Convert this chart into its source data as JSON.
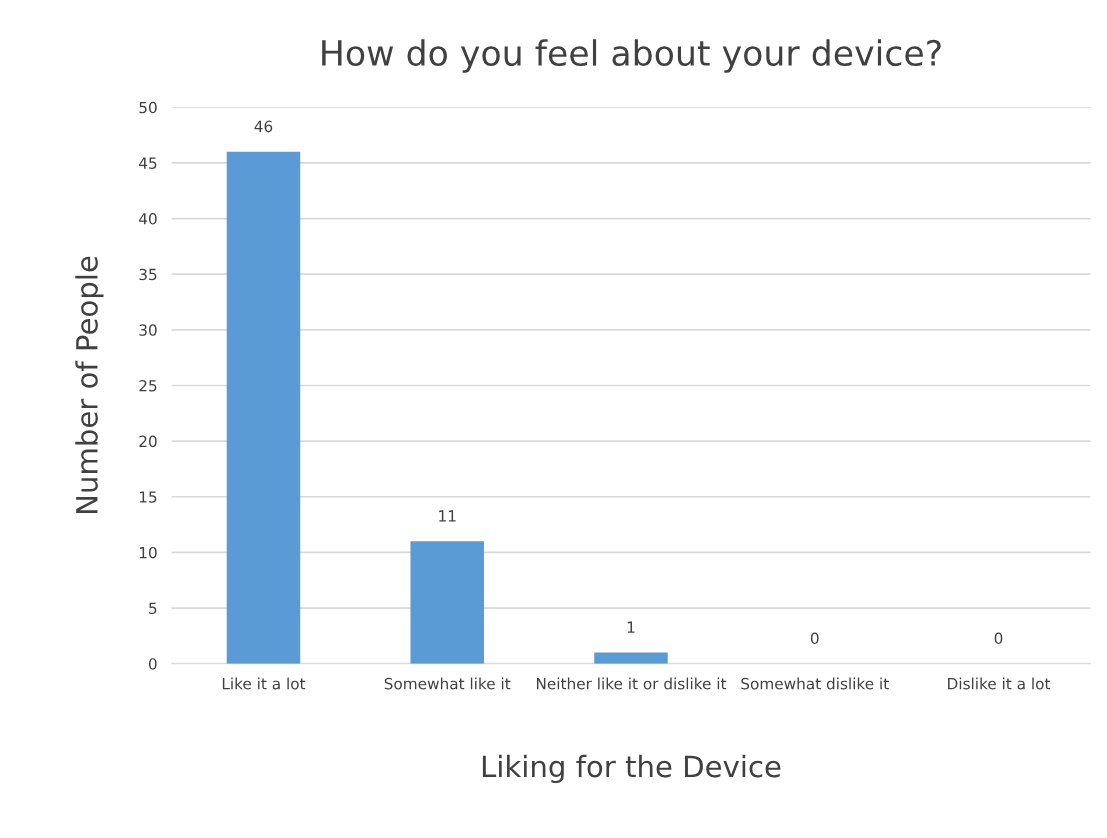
{
  "chart_data": {
    "type": "bar",
    "title": "How do you feel about your device?",
    "xlabel": "Liking for the Device",
    "ylabel": "Number of People",
    "categories": [
      "Like it a lot",
      "Somewhat like it",
      "Neither like it or dislike it",
      "Somewhat dislike it",
      "Dislike it a lot"
    ],
    "values": [
      46,
      11,
      1,
      0,
      0
    ],
    "color": "#5b9bd5",
    "ylim": [
      0,
      50
    ],
    "yticks": [
      0,
      5,
      10,
      15,
      20,
      25,
      30,
      35,
      40,
      45,
      50
    ],
    "grid": "y",
    "data_labels": true,
    "legend": false
  }
}
